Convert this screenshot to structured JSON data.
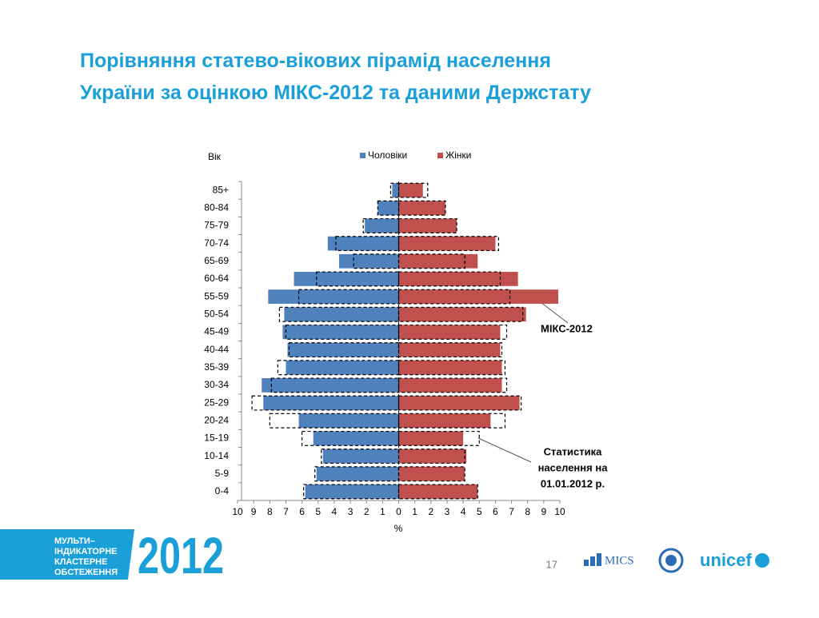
{
  "header": {
    "title_lines": [
      "Порівняння статево-вікових пірамід населення",
      "України за оцінкою МІКС-2012 та даними Держстату"
    ]
  },
  "chart_data": {
    "type": "pyramid",
    "y_label": "Вік",
    "x_label": "%",
    "categories": [
      "85+",
      "80-84",
      "75-79",
      "70-74",
      "65-69",
      "60-64",
      "55-59",
      "50-54",
      "45-49",
      "40-44",
      "35-39",
      "30-34",
      "25-29",
      "20-24",
      "15-19",
      "10-14",
      "5-9",
      "0-4"
    ],
    "series": [
      {
        "name": "Чоловіки",
        "color": "#4f81bd",
        "side": "left",
        "values": [
          0.4,
          1.3,
          2.1,
          4.4,
          3.7,
          6.5,
          8.1,
          7.1,
          7.2,
          6.9,
          7.0,
          8.5,
          8.4,
          6.2,
          5.3,
          4.7,
          5.1,
          5.8
        ]
      },
      {
        "name": "Жінки",
        "color": "#c0504d",
        "side": "right",
        "values": [
          1.5,
          2.9,
          3.6,
          6.0,
          4.9,
          7.4,
          9.9,
          7.9,
          6.3,
          6.3,
          6.4,
          6.4,
          7.5,
          5.7,
          4.0,
          4.2,
          4.1,
          4.9
        ]
      }
    ],
    "reference": {
      "label_lines": [
        "Статистика",
        "населення на",
        "01.01.2012 р."
      ],
      "series": [
        {
          "side": "left",
          "values": [
            0.5,
            1.3,
            2.2,
            3.9,
            2.8,
            5.1,
            6.2,
            7.4,
            7.0,
            6.8,
            7.5,
            7.9,
            9.1,
            8.0,
            6.0,
            4.8,
            5.2,
            5.9
          ]
        },
        {
          "side": "right",
          "values": [
            1.8,
            2.9,
            3.6,
            6.2,
            4.1,
            6.3,
            6.9,
            7.7,
            6.7,
            6.4,
            6.6,
            6.7,
            7.6,
            6.6,
            5.0,
            4.1,
            4.1,
            4.9
          ]
        }
      ]
    },
    "annotation": "МІКС-2012",
    "xlim": [
      -10,
      10
    ],
    "xticks": [
      {
        "value": -10,
        "label": "10"
      },
      {
        "value": -9,
        "label": "9"
      },
      {
        "value": -8,
        "label": "8"
      },
      {
        "value": -7,
        "label": "7"
      },
      {
        "value": -6,
        "label": "6"
      },
      {
        "value": -5,
        "label": "5"
      },
      {
        "value": -4,
        "label": "4"
      },
      {
        "value": -3,
        "label": "3"
      },
      {
        "value": -2,
        "label": "2"
      },
      {
        "value": -1,
        "label": "1"
      },
      0,
      1,
      2,
      3,
      4,
      5,
      6,
      7,
      8,
      9,
      10
    ]
  },
  "footer": {
    "survey_lines": [
      "МУЛЬТИ–",
      "ІНДИКАТОРНЕ",
      "КЛАСТЕРНЕ",
      "ОБСТЕЖЕННЯ"
    ],
    "year": "2012",
    "page": "17",
    "mics": "MICS",
    "unicef": "unicef"
  }
}
